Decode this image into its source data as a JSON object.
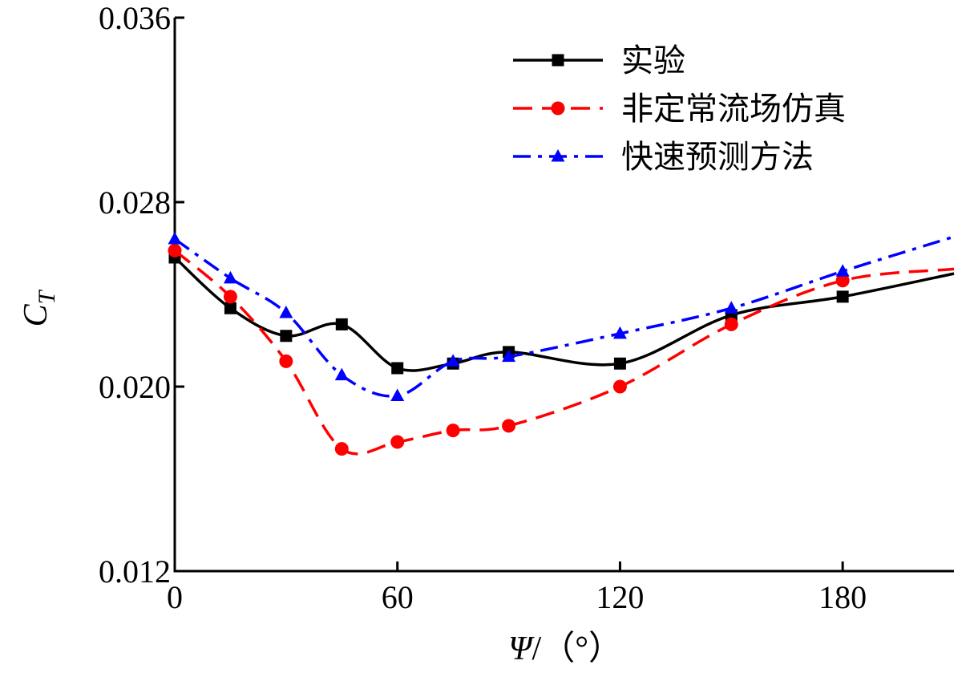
{
  "chart_data": {
    "type": "line",
    "xlabel_symbol": "Ψ",
    "xlabel_unit": "/（°）",
    "ylabel_symbol": "C",
    "ylabel_subscript": "T",
    "xlim": [
      0,
      210
    ],
    "ylim": [
      0.012,
      0.036
    ],
    "x_ticks": [
      0,
      60,
      120,
      180
    ],
    "x_tick_labels": [
      "0",
      "60",
      "120",
      "180"
    ],
    "y_ticks": [
      0.012,
      0.02,
      0.028,
      0.036
    ],
    "y_tick_labels": [
      "0.012",
      "0.020",
      "0.028",
      "0.036"
    ],
    "grid": false,
    "legend_position": "top-right",
    "series": [
      {
        "name": "实验",
        "color": "#000000",
        "line_style": "solid",
        "marker": "square",
        "x": [
          0,
          15,
          30,
          45,
          60,
          75,
          90,
          120,
          150,
          180,
          210
        ],
        "y": [
          0.0256,
          0.0234,
          0.0222,
          0.0227,
          0.0208,
          0.021,
          0.0215,
          0.021,
          0.0231,
          0.0239,
          0.0249
        ]
      },
      {
        "name": "非定常流场仿真",
        "color": "#ff0000",
        "line_style": "dashed",
        "marker": "circle",
        "x": [
          0,
          15,
          30,
          45,
          60,
          75,
          90,
          120,
          150,
          180,
          210
        ],
        "y": [
          0.0259,
          0.0239,
          0.0211,
          0.0173,
          0.0176,
          0.0181,
          0.0183,
          0.02,
          0.0227,
          0.0246,
          0.0251
        ]
      },
      {
        "name": "快速预测方法",
        "color": "#0000ff",
        "line_style": "dashdot",
        "marker": "triangle",
        "x": [
          0,
          15,
          30,
          45,
          60,
          75,
          90,
          120,
          150,
          180,
          210
        ],
        "y": [
          0.0264,
          0.0247,
          0.0232,
          0.0205,
          0.0196,
          0.0211,
          0.0213,
          0.0223,
          0.0234,
          0.025,
          0.0265
        ]
      }
    ]
  }
}
